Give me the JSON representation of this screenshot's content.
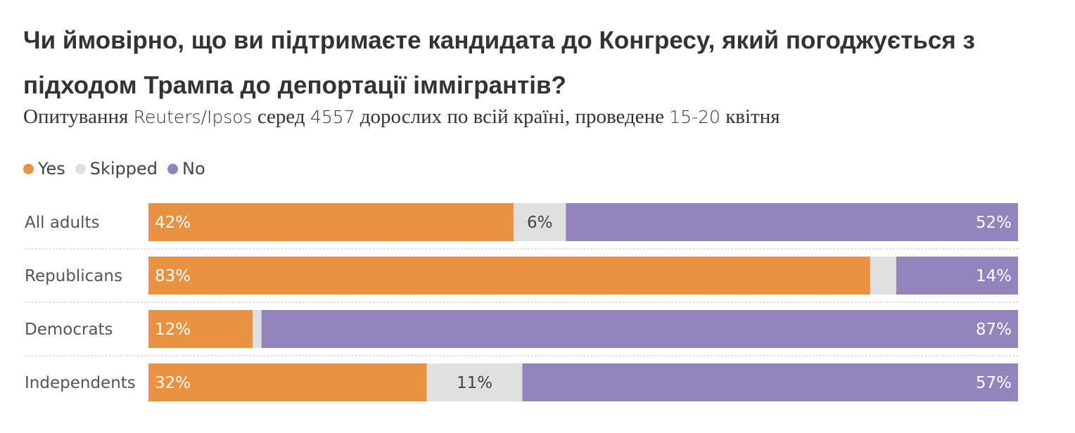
{
  "chart_data": {
    "type": "bar",
    "orientation": "horizontal",
    "stacked": true,
    "title": "Чи ймовірно, що ви підтримаєте кандидата до Конгресу, який погоджується з підходом Трампа до депортації іммігрантів?",
    "subtitle_parts": [
      {
        "text": "Опитування ",
        "style": "serif"
      },
      {
        "text": "Reuters/Ipsos",
        "style": "sans"
      },
      {
        "text": " серед ",
        "style": "serif"
      },
      {
        "text": "4557",
        "style": "sans"
      },
      {
        "text": " дорослих по всій країні, проведене ",
        "style": "serif"
      },
      {
        "text": "15-20",
        "style": "sans"
      },
      {
        "text": " квітня",
        "style": "serif"
      }
    ],
    "categories": [
      "All adults",
      "Republicans",
      "Democrats",
      "Independents"
    ],
    "series": [
      {
        "name": "Yes",
        "color": "#e89242",
        "values": [
          42,
          83,
          12,
          32
        ],
        "labels": [
          "42%",
          "83%",
          "12%",
          "32%"
        ]
      },
      {
        "name": "Skipped",
        "color": "#e0e0e0",
        "values": [
          6,
          3,
          1,
          11
        ],
        "labels": [
          "6%",
          "",
          "",
          "11%"
        ]
      },
      {
        "name": "No",
        "color": "#9384bc",
        "values": [
          52,
          14,
          87,
          57
        ],
        "labels": [
          "52%",
          "14%",
          "87%",
          "57%"
        ]
      }
    ],
    "xlim": [
      0,
      100
    ],
    "legend_position": "top-left",
    "grid": false
  }
}
